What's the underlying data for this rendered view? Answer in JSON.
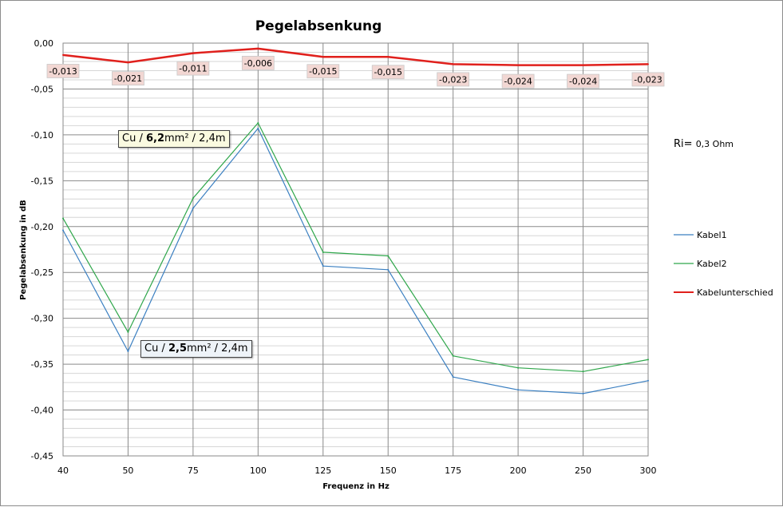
{
  "chart_data": {
    "type": "line",
    "title": "Pegelabsenkung",
    "xlabel": "Frequenz in Hz",
    "ylabel": "Pegelabsenkung in dB",
    "categories": [
      "40",
      "50",
      "75",
      "100",
      "125",
      "150",
      "175",
      "200",
      "250",
      "300"
    ],
    "ylim": [
      -0.45,
      0.0
    ],
    "yticks": [
      "0,00",
      "-0,05",
      "-0,10",
      "-0,15",
      "-0,20",
      "-0,25",
      "-0,30",
      "-0,35",
      "-0,40",
      "-0,45"
    ],
    "ytick_values": [
      0.0,
      -0.05,
      -0.1,
      -0.15,
      -0.2,
      -0.25,
      -0.3,
      -0.35,
      -0.4,
      -0.45
    ],
    "grid": true,
    "legend_position": "right",
    "series": [
      {
        "name": "Kabel1",
        "color": "#3a7fc1",
        "values": [
          -0.204,
          -0.336,
          -0.18,
          -0.093,
          -0.243,
          -0.247,
          -0.364,
          -0.378,
          -0.382,
          -0.368
        ]
      },
      {
        "name": "Kabel2",
        "color": "#2ea64a",
        "values": [
          -0.191,
          -0.315,
          -0.169,
          -0.087,
          -0.228,
          -0.232,
          -0.341,
          -0.354,
          -0.358,
          -0.345
        ]
      },
      {
        "name": "Kabelunterschied",
        "color": "#e0201c",
        "values": [
          -0.013,
          -0.021,
          -0.011,
          -0.006,
          -0.015,
          -0.015,
          -0.023,
          -0.024,
          -0.024,
          -0.023
        ],
        "data_labels": [
          "-0,013",
          "-0,021",
          "-0,011",
          "-0,006",
          "-0,015",
          "-0,015",
          "-0,023",
          "-0,024",
          "-0,024",
          "-0,023"
        ]
      }
    ]
  },
  "annotations": {
    "kabel2_prefix": "Cu / ",
    "kabel2_bold": "6,2",
    "kabel2_suffix": "mm² / 2,4m",
    "kabel1_prefix": "Cu / ",
    "kabel1_bold": "2,5",
    "kabel1_suffix": "mm² / 2,4m"
  },
  "ri_note": {
    "label": "Ri=",
    "value": "0,3 Ohm"
  }
}
